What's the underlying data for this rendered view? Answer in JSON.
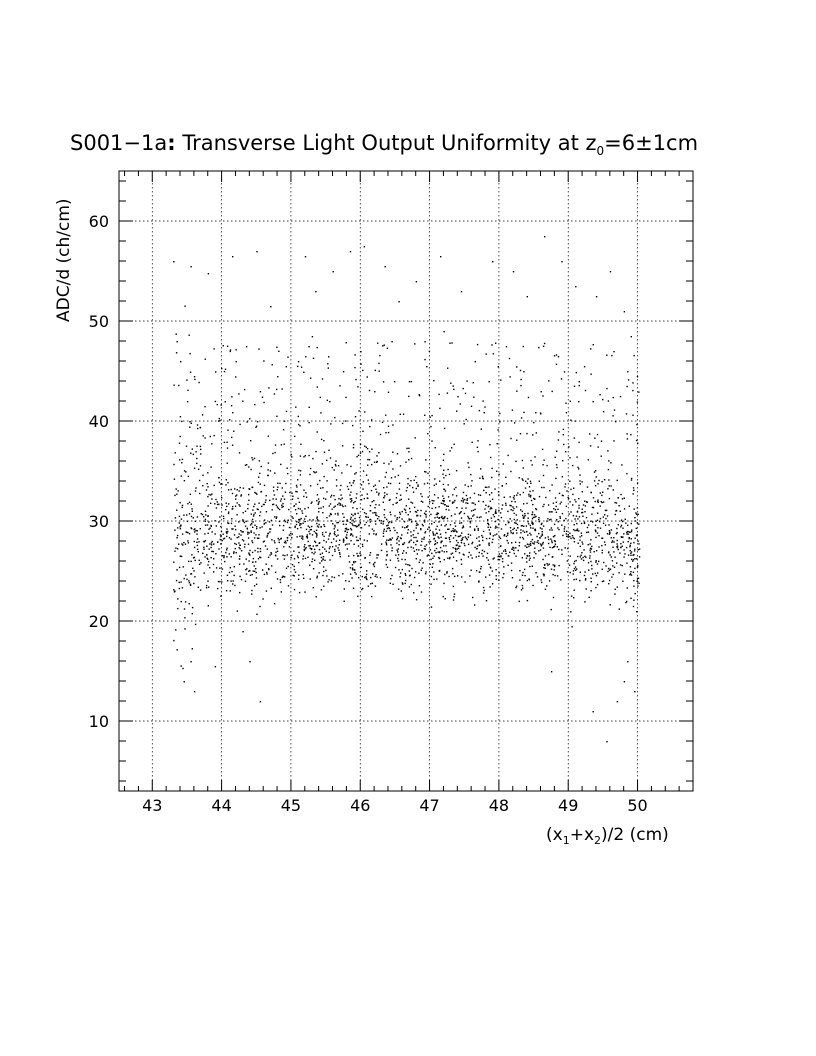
{
  "chart_data": {
    "type": "scatter",
    "title": {
      "prefix": "S001−1a",
      "colon": ":",
      "main": " Transverse Light Output Uniformity at z",
      "sub": "0",
      "suffix": "=6±1cm"
    },
    "xlabel": {
      "parts": [
        {
          "t": "(x",
          "sub": false
        },
        {
          "t": "1",
          "sub": true
        },
        {
          "t": "+x",
          "sub": false
        },
        {
          "t": "2",
          "sub": true
        },
        {
          "t": ")/2 (cm)",
          "sub": false
        }
      ]
    },
    "ylabel": "ADC/d (ch/cm)",
    "xlim": [
      42.52,
      50.8
    ],
    "ylim": [
      3,
      65
    ],
    "x_ticks": [
      "43",
      "44",
      "45",
      "46",
      "47",
      "48",
      "49",
      "50"
    ],
    "y_ticks": [
      "10",
      "20",
      "30",
      "40",
      "50",
      "60"
    ],
    "grid": true,
    "marker_color": "#000000",
    "points_description": "dense scatter of ~3000 events; x from ~43.3 to ~50.0 cm, y concentrated 23-38 ch/cm (peak ~28-30), sparse tail 38-58, edges drop to ~12-20 near x≈49.5-50",
    "sparse_points": [
      [
        43.3,
        56
      ],
      [
        43.55,
        55.5
      ],
      [
        43.8,
        54.8
      ],
      [
        44.15,
        56.5
      ],
      [
        44.5,
        57
      ],
      [
        44.7,
        51.5
      ],
      [
        45.2,
        56.5
      ],
      [
        45.35,
        53
      ],
      [
        45.6,
        55
      ],
      [
        45.85,
        57
      ],
      [
        46.05,
        57.5
      ],
      [
        46.35,
        55.5
      ],
      [
        46.55,
        52
      ],
      [
        46.8,
        54
      ],
      [
        47.15,
        56.5
      ],
      [
        47.45,
        53
      ],
      [
        47.9,
        56
      ],
      [
        48.2,
        55
      ],
      [
        48.4,
        52.5
      ],
      [
        48.65,
        58.5
      ],
      [
        48.9,
        56
      ],
      [
        49.1,
        53.5
      ],
      [
        49.4,
        52.5
      ],
      [
        49.6,
        55
      ],
      [
        49.8,
        51
      ],
      [
        43.35,
        48
      ],
      [
        43.4,
        46
      ],
      [
        43.6,
        44.5
      ],
      [
        43.5,
        42
      ],
      [
        43.75,
        41.5
      ],
      [
        44.2,
        46
      ],
      [
        44.35,
        47.5
      ],
      [
        44.55,
        43
      ],
      [
        44.8,
        44.5
      ],
      [
        45.1,
        46
      ],
      [
        45.3,
        48.5
      ],
      [
        45.55,
        42
      ],
      [
        45.75,
        45
      ],
      [
        46.0,
        47
      ],
      [
        46.2,
        43
      ],
      [
        46.45,
        48
      ],
      [
        46.7,
        44
      ],
      [
        46.95,
        45.5
      ],
      [
        47.2,
        49
      ],
      [
        47.4,
        42.5
      ],
      [
        47.65,
        46
      ],
      [
        47.85,
        44
      ],
      [
        48.1,
        47.5
      ],
      [
        48.35,
        45
      ],
      [
        48.6,
        43
      ],
      [
        48.85,
        46.5
      ],
      [
        49.15,
        44
      ],
      [
        49.35,
        42
      ],
      [
        49.65,
        47
      ],
      [
        49.85,
        45
      ],
      [
        49.9,
        48.5
      ],
      [
        49.5,
        41
      ],
      [
        43.45,
        14
      ],
      [
        43.6,
        13
      ],
      [
        43.55,
        16
      ],
      [
        44.4,
        16
      ],
      [
        44.55,
        12
      ],
      [
        49.35,
        11
      ],
      [
        49.7,
        12
      ],
      [
        49.8,
        14
      ],
      [
        49.95,
        13
      ],
      [
        49.55,
        8
      ],
      [
        44.3,
        19
      ],
      [
        43.9,
        15.5
      ],
      [
        48.75,
        15
      ],
      [
        49.85,
        16
      ]
    ],
    "dense_seed": 1337,
    "dense_count": 2900
  }
}
